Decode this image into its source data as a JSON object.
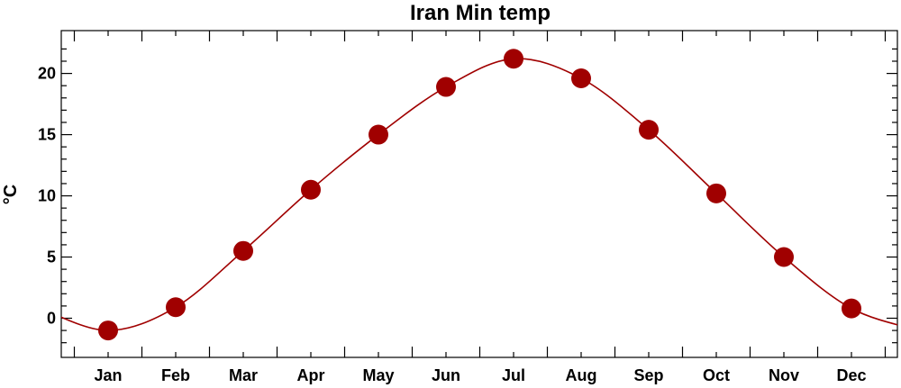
{
  "chart_data": {
    "type": "line",
    "title": "Iran Min temp",
    "xlabel": "",
    "ylabel": "°C",
    "categories": [
      "Jan",
      "Feb",
      "Mar",
      "Apr",
      "May",
      "Jun",
      "Jul",
      "Aug",
      "Sep",
      "Oct",
      "Nov",
      "Dec"
    ],
    "series": [
      {
        "values": [
          -1.0,
          0.9,
          5.5,
          10.5,
          15.0,
          18.9,
          21.2,
          19.6,
          15.4,
          10.2,
          5.0,
          0.8
        ],
        "color": "#a00000"
      }
    ],
    "ylim": [
      -3.2,
      23.5
    ],
    "yticks": [
      0,
      5,
      10,
      15,
      20
    ],
    "ytick_labels": [
      "0",
      "5",
      "10",
      "15",
      "20"
    ],
    "grid": false,
    "marker": "filled-circle"
  }
}
